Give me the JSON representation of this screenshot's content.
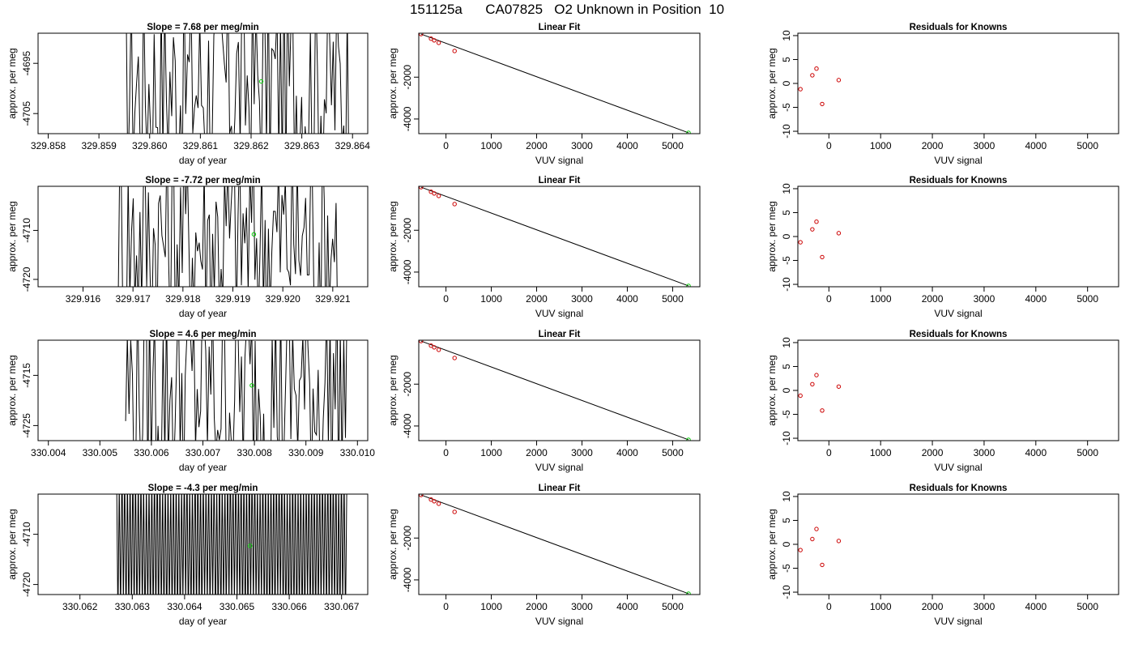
{
  "page_title": "151125a      CA07825   O2 Unknown in Position  10",
  "labels": {
    "day_of_year": "day of year",
    "approx_per_meg": "approx. per meg",
    "vuv_signal": "VUV signal",
    "linear_fit_title": "Linear Fit",
    "residuals_title": "Residuals for Knowns"
  },
  "colors": {
    "trace": "#000000",
    "unknown_point": "#00cc00",
    "residual_point": "#cc0000",
    "fit_point": "#cc0000",
    "axis": "#000000"
  },
  "rows": [
    {
      "timeseries": {
        "title": "Slope =  7.68  per meg/min",
        "xlim": [
          329.8578,
          329.8643
        ],
        "ylim": [
          -4709.0,
          -4689.0
        ],
        "xticks": [
          329.858,
          329.859,
          329.86,
          329.861,
          329.862,
          329.863,
          329.864
        ],
        "xtick_labels": [
          "329.858",
          "329.859",
          "329.860",
          "329.861",
          "329.862",
          "329.863",
          "329.864"
        ],
        "yticks": [
          -4695,
          -4705
        ],
        "ytick_labels": [
          "-4695",
          "-4705"
        ],
        "trace_x_range": [
          329.8595,
          329.864
        ],
        "trace_style": "erratic",
        "unknown_point": {
          "x": 329.8622,
          "y": -4698.6
        }
      },
      "linear_fit": {
        "title": "Linear Fit",
        "xlim": [
          -600,
          5600
        ],
        "ylim": [
          -4700,
          100
        ],
        "xticks": [
          0,
          1000,
          2000,
          3000,
          4000,
          5000
        ],
        "xtick_labels": [
          "0",
          "1000",
          "2000",
          "3000",
          "4000",
          "5000"
        ],
        "yticks": [
          -2000,
          -4000
        ],
        "ytick_labels": [
          "-2000",
          "-4000"
        ],
        "knowns": [
          {
            "x": -550,
            "y": 60
          },
          {
            "x": -330,
            "y": -160
          },
          {
            "x": -260,
            "y": -240
          },
          {
            "x": -160,
            "y": -360
          },
          {
            "x": 190,
            "y": -750
          }
        ],
        "fit_line": [
          {
            "x": -550,
            "y": 60
          },
          {
            "x": 5350,
            "y": -4660
          }
        ],
        "unknown_point": {
          "x": 5350,
          "y": -4660
        }
      },
      "residuals": {
        "title": "Residuals for Knowns",
        "xlim": [
          -600,
          5600
        ],
        "ylim": [
          -10.5,
          10.5
        ],
        "xticks": [
          0,
          1000,
          2000,
          3000,
          4000,
          5000
        ],
        "xtick_labels": [
          "0",
          "1000",
          "2000",
          "3000",
          "4000",
          "5000"
        ],
        "yticks": [
          10,
          5,
          0,
          -5,
          -10
        ],
        "ytick_labels": [
          "10",
          "5",
          "0",
          "-5",
          "-10"
        ],
        "points": [
          {
            "x": -550,
            "y": -1.2
          },
          {
            "x": -320,
            "y": 1.7
          },
          {
            "x": -240,
            "y": 3.1
          },
          {
            "x": -130,
            "y": -4.3
          },
          {
            "x": 190,
            "y": 0.7
          }
        ]
      }
    },
    {
      "timeseries": {
        "title": "Slope =  -7.72  per meg/min",
        "xlim": [
          329.9151,
          329.9217
        ],
        "ylim": [
          -4721.5,
          -4701.0
        ],
        "xticks": [
          329.916,
          329.917,
          329.918,
          329.919,
          329.92,
          329.921
        ],
        "xtick_labels": [
          "329.916",
          "329.917",
          "329.918",
          "329.919",
          "329.920",
          "329.921"
        ],
        "yticks": [
          -4710,
          -4720
        ],
        "ytick_labels": [
          "-4710",
          "-4720"
        ],
        "trace_x_range": [
          329.9167,
          329.9211
        ],
        "trace_style": "erratic",
        "unknown_point": {
          "x": 329.91942,
          "y": -4710.8
        }
      },
      "linear_fit": {
        "title": "Linear Fit",
        "xlim": [
          -600,
          5600
        ],
        "ylim": [
          -4700,
          100
        ],
        "xticks": [
          0,
          1000,
          2000,
          3000,
          4000,
          5000
        ],
        "xtick_labels": [
          "0",
          "1000",
          "2000",
          "3000",
          "4000",
          "5000"
        ],
        "yticks": [
          -2000,
          -4000
        ],
        "ytick_labels": [
          "-2000",
          "-4000"
        ],
        "knowns": [
          {
            "x": -550,
            "y": 60
          },
          {
            "x": -330,
            "y": -160
          },
          {
            "x": -260,
            "y": -240
          },
          {
            "x": -160,
            "y": -360
          },
          {
            "x": 190,
            "y": -750
          }
        ],
        "fit_line": [
          {
            "x": -550,
            "y": 60
          },
          {
            "x": 5350,
            "y": -4660
          }
        ],
        "unknown_point": {
          "x": 5350,
          "y": -4660
        }
      },
      "residuals": {
        "title": "Residuals for Knowns",
        "xlim": [
          -600,
          5600
        ],
        "ylim": [
          -10.5,
          10.5
        ],
        "xticks": [
          0,
          1000,
          2000,
          3000,
          4000,
          5000
        ],
        "xtick_labels": [
          "0",
          "1000",
          "2000",
          "3000",
          "4000",
          "5000"
        ],
        "yticks": [
          10,
          5,
          0,
          -5,
          -10
        ],
        "ytick_labels": [
          "10",
          "5",
          "0",
          "-5",
          "-10"
        ],
        "points": [
          {
            "x": -550,
            "y": -1.2
          },
          {
            "x": -320,
            "y": 1.5
          },
          {
            "x": -240,
            "y": 3.1
          },
          {
            "x": -130,
            "y": -4.3
          },
          {
            "x": 190,
            "y": 0.7
          }
        ]
      }
    },
    {
      "timeseries": {
        "title": "Slope =  4.6  per meg/min",
        "xlim": [
          330.0038,
          330.0102
        ],
        "ylim": [
          -4728.0,
          -4708.0
        ],
        "xticks": [
          330.004,
          330.005,
          330.006,
          330.007,
          330.008,
          330.009,
          330.01
        ],
        "xtick_labels": [
          "330.004",
          "330.005",
          "330.006",
          "330.007",
          "330.008",
          "330.009",
          "330.010"
        ],
        "yticks": [
          -4715,
          -4725
        ],
        "ytick_labels": [
          "-4715",
          "-4725"
        ],
        "trace_x_range": [
          330.0055,
          330.0098
        ],
        "trace_style": "erratic",
        "unknown_point": {
          "x": 330.00795,
          "y": -4717.0
        }
      },
      "linear_fit": {
        "title": "Linear Fit",
        "xlim": [
          -600,
          5600
        ],
        "ylim": [
          -4700,
          100
        ],
        "xticks": [
          0,
          1000,
          2000,
          3000,
          4000,
          5000
        ],
        "xtick_labels": [
          "0",
          "1000",
          "2000",
          "3000",
          "4000",
          "5000"
        ],
        "yticks": [
          -2000,
          -4000
        ],
        "ytick_labels": [
          "-2000",
          "-4000"
        ],
        "knowns": [
          {
            "x": -550,
            "y": 60
          },
          {
            "x": -330,
            "y": -160
          },
          {
            "x": -260,
            "y": -240
          },
          {
            "x": -160,
            "y": -360
          },
          {
            "x": 190,
            "y": -750
          }
        ],
        "fit_line": [
          {
            "x": -550,
            "y": 60
          },
          {
            "x": 5350,
            "y": -4660
          }
        ],
        "unknown_point": {
          "x": 5350,
          "y": -4660
        }
      },
      "residuals": {
        "title": "Residuals for Knowns",
        "xlim": [
          -600,
          5600
        ],
        "ylim": [
          -10.5,
          10.5
        ],
        "xticks": [
          0,
          1000,
          2000,
          3000,
          4000,
          5000
        ],
        "xtick_labels": [
          "0",
          "1000",
          "2000",
          "3000",
          "4000",
          "5000"
        ],
        "yticks": [
          10,
          5,
          0,
          -5,
          -10
        ],
        "ytick_labels": [
          "10",
          "5",
          "0",
          "-5",
          "-10"
        ],
        "points": [
          {
            "x": -550,
            "y": -1.1
          },
          {
            "x": -320,
            "y": 1.3
          },
          {
            "x": -240,
            "y": 3.2
          },
          {
            "x": -130,
            "y": -4.2
          },
          {
            "x": 190,
            "y": 0.8
          }
        ]
      }
    },
    {
      "timeseries": {
        "title": "Slope =  -4.3  per meg/min",
        "xlim": [
          330.0612,
          330.0675
        ],
        "ylim": [
          -4722.0,
          -4702.0
        ],
        "xticks": [
          330.062,
          330.063,
          330.064,
          330.065,
          330.066,
          330.067
        ],
        "xtick_labels": [
          "330.062",
          "330.063",
          "330.064",
          "330.065",
          "330.066",
          "330.067"
        ],
        "yticks": [
          -4710,
          -4720
        ],
        "ytick_labels": [
          "-4710",
          "-4720"
        ],
        "trace_x_range": [
          330.0627,
          330.0671
        ],
        "trace_style": "periodic",
        "unknown_point": {
          "x": 330.06525,
          "y": -4712.3
        }
      },
      "linear_fit": {
        "title": "Linear Fit",
        "xlim": [
          -600,
          5600
        ],
        "ylim": [
          -4700,
          100
        ],
        "xticks": [
          0,
          1000,
          2000,
          3000,
          4000,
          5000
        ],
        "xtick_labels": [
          "0",
          "1000",
          "2000",
          "3000",
          "4000",
          "5000"
        ],
        "yticks": [
          -2000,
          -4000
        ],
        "ytick_labels": [
          "-2000",
          "-4000"
        ],
        "knowns": [
          {
            "x": -550,
            "y": 60
          },
          {
            "x": -330,
            "y": -160
          },
          {
            "x": -260,
            "y": -240
          },
          {
            "x": -160,
            "y": -360
          },
          {
            "x": 190,
            "y": -750
          }
        ],
        "fit_line": [
          {
            "x": -550,
            "y": 60
          },
          {
            "x": 5350,
            "y": -4660
          }
        ],
        "unknown_point": {
          "x": 5350,
          "y": -4660
        }
      },
      "residuals": {
        "title": "Residuals for Knowns",
        "xlim": [
          -600,
          5600
        ],
        "ylim": [
          -10.5,
          10.5
        ],
        "xticks": [
          0,
          1000,
          2000,
          3000,
          4000,
          5000
        ],
        "xtick_labels": [
          "0",
          "1000",
          "2000",
          "3000",
          "4000",
          "5000"
        ],
        "yticks": [
          10,
          5,
          0,
          -5,
          -10
        ],
        "ytick_labels": [
          "10",
          "5",
          "0",
          "-5",
          "-10"
        ],
        "points": [
          {
            "x": -550,
            "y": -1.2
          },
          {
            "x": -320,
            "y": 1.1
          },
          {
            "x": -240,
            "y": 3.2
          },
          {
            "x": -130,
            "y": -4.3
          },
          {
            "x": 190,
            "y": 0.7
          }
        ]
      }
    }
  ],
  "chart_data": [
    {
      "type": "line",
      "title": "Slope =  7.68  per meg/min",
      "xlabel": "day of year",
      "ylabel": "approx. per meg",
      "xlim": [
        329.8578,
        329.8643
      ],
      "ylim": [
        -4709,
        -4689
      ],
      "highlight_point": {
        "x": 329.8622,
        "y": -4698.6
      }
    },
    {
      "type": "scatter",
      "title": "Linear Fit",
      "xlabel": "VUV signal",
      "ylabel": "approx. per meg",
      "x": [
        -550,
        -330,
        -260,
        -160,
        190,
        5350
      ],
      "y": [
        60,
        -160,
        -240,
        -360,
        -750,
        -4660
      ]
    },
    {
      "type": "scatter",
      "title": "Residuals for Knowns",
      "xlabel": "VUV signal",
      "ylabel": "approx. per meg",
      "x": [
        -550,
        -320,
        -240,
        -130,
        190
      ],
      "y": [
        -1.2,
        1.7,
        3.1,
        -4.3,
        0.7
      ]
    },
    {
      "type": "line",
      "title": "Slope =  -7.72  per meg/min",
      "xlabel": "day of year",
      "ylabel": "approx. per meg",
      "xlim": [
        329.9151,
        329.9217
      ],
      "ylim": [
        -4721.5,
        -4701
      ],
      "highlight_point": {
        "x": 329.91942,
        "y": -4710.8
      }
    },
    {
      "type": "scatter",
      "title": "Linear Fit",
      "xlabel": "VUV signal",
      "ylabel": "approx. per meg",
      "x": [
        -550,
        -330,
        -260,
        -160,
        190,
        5350
      ],
      "y": [
        60,
        -160,
        -240,
        -360,
        -750,
        -4660
      ]
    },
    {
      "type": "scatter",
      "title": "Residuals for Knowns",
      "xlabel": "VUV signal",
      "ylabel": "approx. per meg",
      "x": [
        -550,
        -320,
        -240,
        -130,
        190
      ],
      "y": [
        -1.2,
        1.5,
        3.1,
        -4.3,
        0.7
      ]
    },
    {
      "type": "line",
      "title": "Slope =  4.6  per meg/min",
      "xlabel": "day of year",
      "ylabel": "approx. per meg",
      "xlim": [
        330.0038,
        330.0102
      ],
      "ylim": [
        -4728,
        -4708
      ],
      "highlight_point": {
        "x": 330.00795,
        "y": -4717.0
      }
    },
    {
      "type": "scatter",
      "title": "Linear Fit",
      "xlabel": "VUV signal",
      "ylabel": "approx. per meg",
      "x": [
        -550,
        -330,
        -260,
        -160,
        190,
        5350
      ],
      "y": [
        60,
        -160,
        -240,
        -360,
        -750,
        -4660
      ]
    },
    {
      "type": "scatter",
      "title": "Residuals for Knowns",
      "xlabel": "VUV signal",
      "ylabel": "approx. per meg",
      "x": [
        -550,
        -320,
        -240,
        -130,
        190
      ],
      "y": [
        -1.1,
        1.3,
        3.2,
        -4.2,
        0.8
      ]
    },
    {
      "type": "line",
      "title": "Slope =  -4.3  per meg/min",
      "xlabel": "day of year",
      "ylabel": "approx. per meg",
      "xlim": [
        330.0612,
        330.0675
      ],
      "ylim": [
        -4722,
        -4702
      ],
      "highlight_point": {
        "x": 330.06525,
        "y": -4712.3
      }
    },
    {
      "type": "scatter",
      "title": "Linear Fit",
      "xlabel": "VUV signal",
      "ylabel": "approx. per meg",
      "x": [
        -550,
        -330,
        -260,
        -160,
        190,
        5350
      ],
      "y": [
        60,
        -160,
        -240,
        -360,
        -750,
        -4660
      ]
    },
    {
      "type": "scatter",
      "title": "Residuals for Knowns",
      "xlabel": "VUV signal",
      "ylabel": "approx. per meg",
      "x": [
        -550,
        -320,
        -240,
        -130,
        190
      ],
      "y": [
        -1.2,
        1.1,
        3.2,
        -4.3,
        0.7
      ]
    }
  ]
}
